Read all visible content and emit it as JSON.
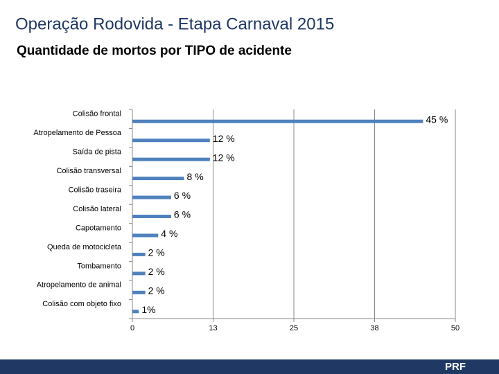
{
  "chart_data": {
    "type": "hbar",
    "title": "Operação Rodovida - Etapa Carnaval 2015",
    "subtitle": "Quantidade de mortos por TIPO de acidente",
    "categories": [
      "Colisão frontal",
      "Atropelamento de Pessoa",
      "Saída de pista",
      "Colisão transversal",
      "Colisão traseira",
      "Colisão lateral",
      "Capotamento",
      "Queda de motocicleta",
      "Tombamento",
      "Atropelamento de animal",
      "Colisão com objeto fixo"
    ],
    "values": [
      45,
      12,
      12,
      8,
      6,
      6,
      4,
      2,
      2,
      2,
      1
    ],
    "value_labels": [
      "45 %",
      "12 %",
      "12 %",
      "8 %",
      "6 %",
      "6 %",
      "4 %",
      "2 %",
      "2 %",
      "2 %",
      "1%"
    ],
    "color": "#4f81bd",
    "xlim": [
      0,
      50
    ],
    "xticks": [
      0,
      {
        "value": 12.5,
        "label": "13"
      },
      25,
      {
        "value": 37.5,
        "label": "38"
      },
      50
    ],
    "grid": true
  },
  "footer": {
    "logo": "PRF"
  }
}
